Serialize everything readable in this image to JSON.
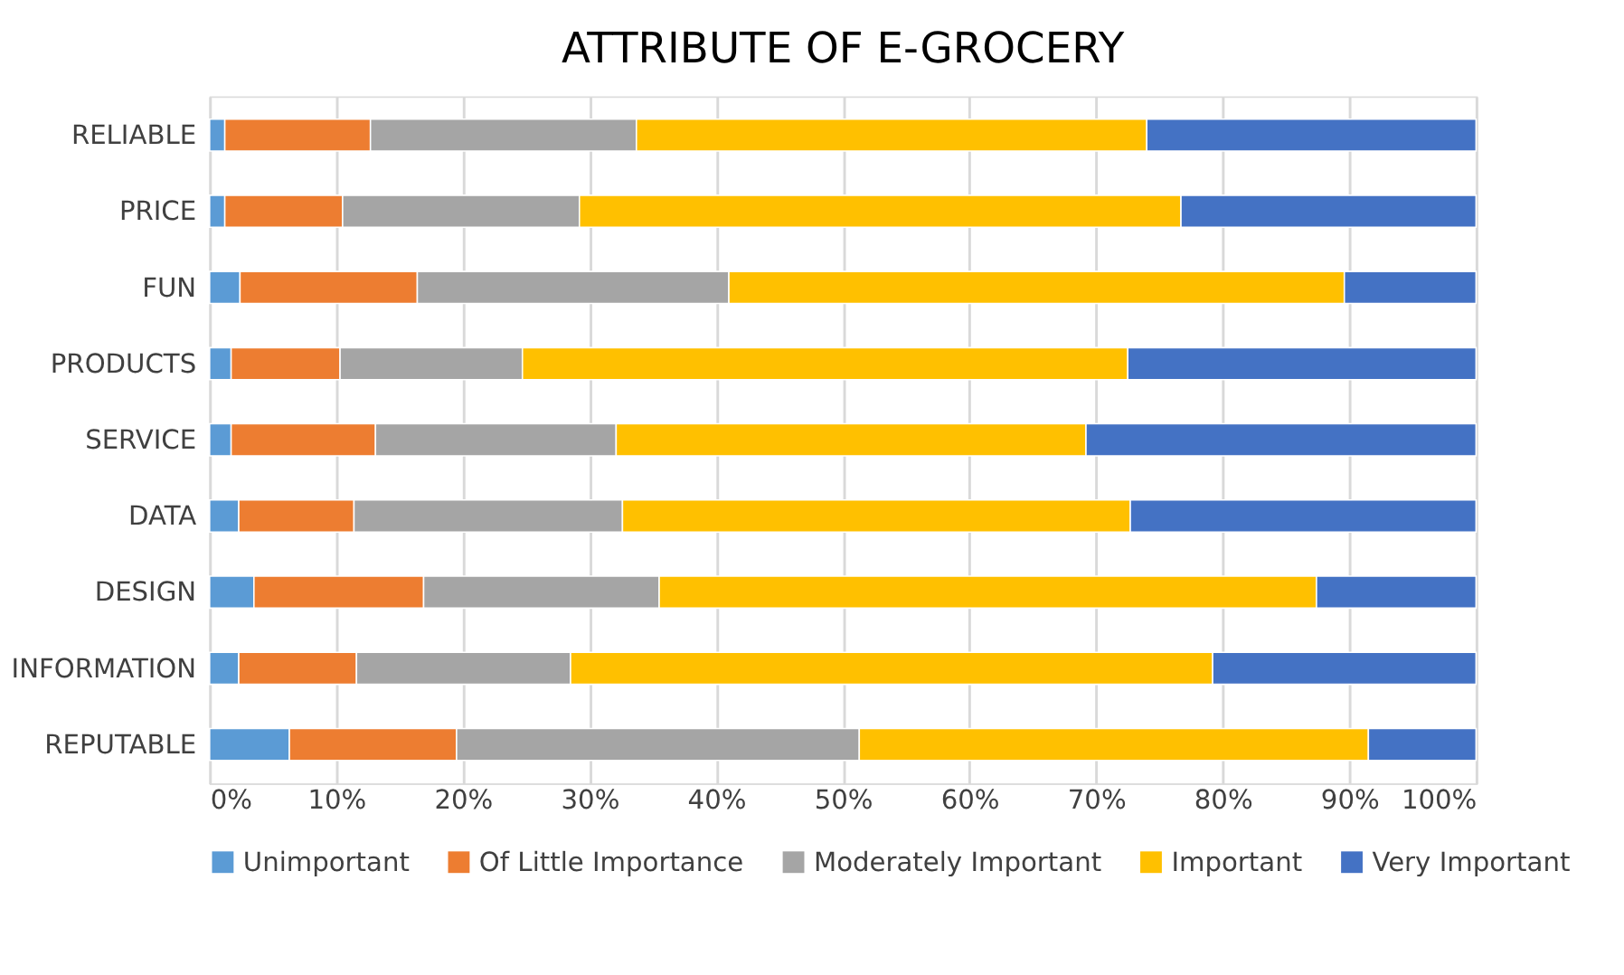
{
  "chart_data": {
    "type": "bar",
    "orientation": "horizontal",
    "stacked": true,
    "title": "ATTRIBUTE OF E-GROCERY",
    "categories": [
      "RELIABLE",
      "PRICE",
      "FUN",
      "PRODUCTS",
      "SERVICE",
      "DATA",
      "DESIGN",
      "INFORMATION",
      "REPUTABLE"
    ],
    "series": [
      {
        "name": "Unimportant",
        "color": "#5b9bd5",
        "values": [
          1.2,
          1.2,
          2.4,
          1.7,
          1.7,
          2.3,
          3.5,
          2.3,
          6.3
        ]
      },
      {
        "name": "Of Little Importance",
        "color": "#ed7d31",
        "values": [
          11.5,
          9.3,
          14.0,
          8.6,
          11.4,
          9.1,
          13.4,
          9.3,
          13.2
        ]
      },
      {
        "name": "Moderately Important",
        "color": "#a5a5a5",
        "values": [
          21.0,
          18.7,
          24.6,
          14.4,
          19.0,
          21.2,
          18.6,
          16.9,
          31.8
        ]
      },
      {
        "name": "Important",
        "color": "#ffc000",
        "values": [
          40.3,
          47.5,
          48.6,
          47.8,
          37.1,
          40.1,
          51.9,
          50.7,
          40.2
        ]
      },
      {
        "name": "Very Important",
        "color": "#4472c4",
        "values": [
          26.0,
          23.3,
          10.4,
          27.5,
          30.8,
          27.3,
          12.6,
          20.8,
          8.5
        ]
      }
    ],
    "xlim": [
      0,
      100
    ],
    "xticks": [
      {
        "value": 0,
        "label": "0%"
      },
      {
        "value": 10,
        "label": "10%"
      },
      {
        "value": 20,
        "label": "20%"
      },
      {
        "value": 30,
        "label": "30%"
      },
      {
        "value": 40,
        "label": "40%"
      },
      {
        "value": 50,
        "label": "50%"
      },
      {
        "value": 60,
        "label": "60%"
      },
      {
        "value": 70,
        "label": "70%"
      },
      {
        "value": 80,
        "label": "80%"
      },
      {
        "value": 90,
        "label": "90%"
      },
      {
        "value": 100,
        "label": "100%"
      }
    ],
    "grid": "x",
    "legend": "bottom"
  }
}
